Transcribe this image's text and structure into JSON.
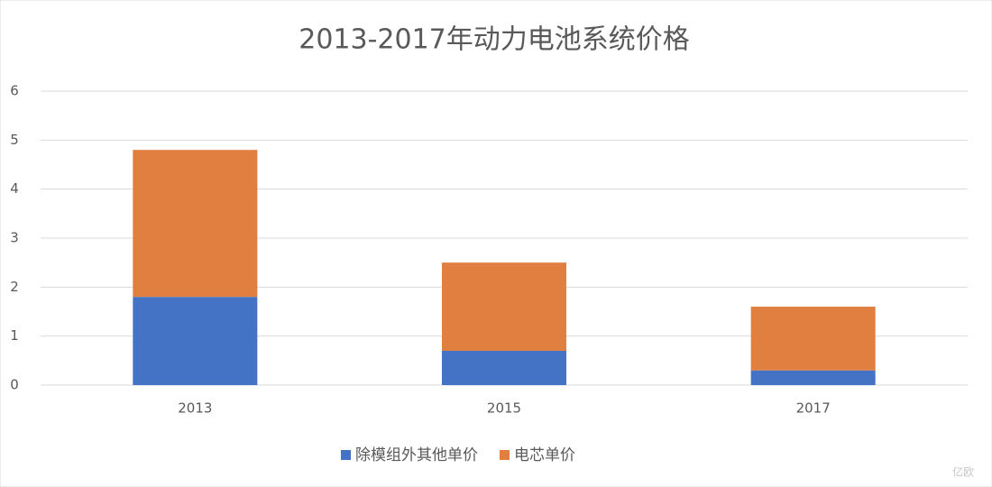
{
  "chart_data": {
    "type": "stacked_bar",
    "title": "2013-2017年动力电池系统价格",
    "categories": [
      "2013",
      "2015",
      "2017"
    ],
    "series": [
      {
        "name": "除模组外其他单价",
        "color": "#4472c4",
        "values": [
          1.8,
          0.7,
          0.3
        ]
      },
      {
        "name": "电芯单价",
        "color": "#e07f40",
        "values": [
          3.0,
          1.8,
          1.3
        ]
      }
    ],
    "ylim": [
      0,
      6
    ],
    "yticks": [
      0,
      1,
      2,
      3,
      4,
      5,
      6
    ],
    "grid": true,
    "legend": "bottom",
    "watermark": "亿欧"
  }
}
